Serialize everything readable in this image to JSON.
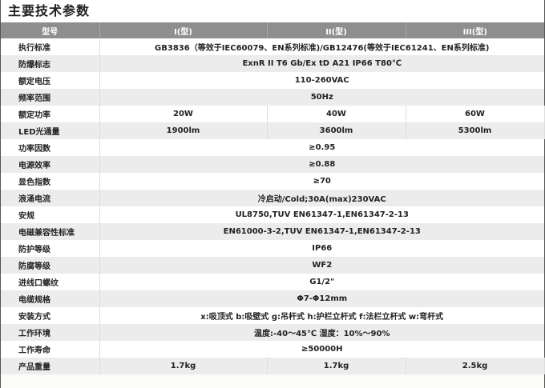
{
  "title": "主要技术参数",
  "header": [
    "型号",
    "I(型)",
    "II(型)",
    "III(型)"
  ],
  "rows": [
    {
      "label": "执行标准",
      "value": "GB3836（等效于IEC60079、EN系列标准)/GB12476(等效于IEC61241、EN系列标准)"
    },
    {
      "label": "防爆标志",
      "value": "ExnR II T6 Gb/Ex tD A21 IP66 T80℃"
    },
    {
      "label": "额定电压",
      "value": "110-260VAC"
    },
    {
      "label": "频率范围",
      "value": "50Hz"
    },
    {
      "label": "额定功率",
      "values": [
        "20W",
        "40W",
        "60W"
      ]
    },
    {
      "label": "LED光通量",
      "values": [
        "1900lm",
        "3600lm",
        "5300lm"
      ]
    },
    {
      "label": "功率因数",
      "value": "≥0.95"
    },
    {
      "label": "电源效率",
      "value": "≥0.88"
    },
    {
      "label": "显色指数",
      "value": "≥70"
    },
    {
      "label": "浪涌电流",
      "value": "冷启动/Cold;30A(max)230VAC"
    },
    {
      "label": "安规",
      "value": "UL8750,TUV EN61347-1,EN61347-2-13"
    },
    {
      "label": "电磁兼容性标准",
      "value": "EN61000-3-2,TUV EN61347-1,EN61347-2-13"
    },
    {
      "label": "防护等级",
      "value": "IP66"
    },
    {
      "label": "防腐等级",
      "value": "WF2"
    },
    {
      "label": "进线口螺纹",
      "value": "G1/2\""
    },
    {
      "label": "电缆规格",
      "value": "Φ7-Φ12mm"
    },
    {
      "label": "安装方式",
      "value": "x:吸顶式  b:吸壁式  g:吊杆式  h:护栏立杆式  f:法栏立杆式  w:弯杆式"
    },
    {
      "label": "工作环境",
      "value": "温度:-40～45℃ 湿度：10%～90%"
    },
    {
      "label": "工作寿命",
      "value": "≥50000H"
    },
    {
      "label": "产品重量",
      "values": [
        "1.7kg",
        "1.7kg",
        "2.5kg"
      ]
    }
  ]
}
